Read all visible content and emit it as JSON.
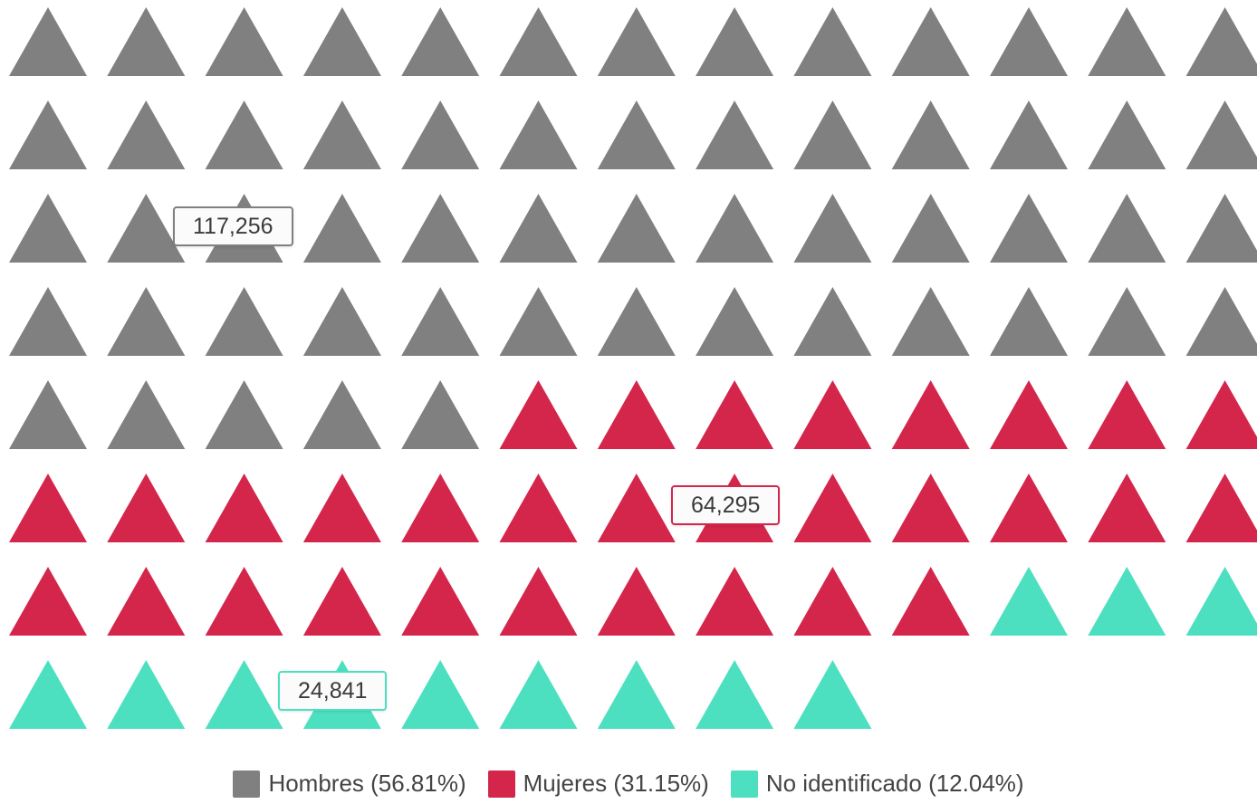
{
  "chart_data": {
    "type": "waffle",
    "shape": "triangle",
    "total_icons": 100,
    "columns": 13,
    "grid": false,
    "legend_position": "bottom-center",
    "series": [
      {
        "name": "Hombres",
        "value": 117256,
        "value_label": "117,256",
        "percent": 56.81,
        "legend_label": "Hombres (56.81%)",
        "color": "#808080",
        "icons": 57
      },
      {
        "name": "Mujeres",
        "value": 64295,
        "value_label": "64,295",
        "percent": 31.15,
        "legend_label": "Mujeres (31.15%)",
        "color": "#d4264b",
        "icons": 31
      },
      {
        "name": "No identificado",
        "value": 24841,
        "value_label": "24,841",
        "percent": 12.04,
        "legend_label": "No identificado (12.04%)",
        "color": "#4de0c0",
        "icons": 12
      }
    ]
  }
}
